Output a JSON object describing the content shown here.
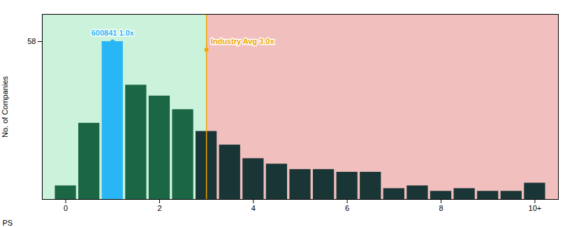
{
  "chart_data": {
    "type": "bar",
    "x": [
      0,
      0.5,
      1,
      1.5,
      2,
      2.5,
      3,
      3.5,
      4,
      4.5,
      5,
      5.5,
      6,
      6.5,
      7,
      7.5,
      8,
      8.5,
      9,
      9.5,
      10
    ],
    "values": [
      5,
      28,
      58,
      42,
      38,
      33,
      25,
      20,
      15,
      13,
      11,
      11,
      10,
      10,
      4,
      5,
      3,
      4,
      3,
      3,
      6
    ],
    "colors": [
      "#1a6645",
      "#1a6645",
      "#29b6f6",
      "#1a6645",
      "#1a6645",
      "#1a6645",
      "#1a3535",
      "#1a3535",
      "#1a3535",
      "#1a3535",
      "#1a3535",
      "#1a3535",
      "#1a3535",
      "#1a3535",
      "#1a3535",
      "#1a3535",
      "#1a3535",
      "#1a3535",
      "#1a3535",
      "#1a3535",
      "#1a3535"
    ],
    "xlabel": "PS",
    "ylabel": "No. of Companies",
    "xlim": [
      -0.5,
      10.5
    ],
    "xticks": [
      0,
      2,
      4,
      6,
      8,
      {
        "value": 10,
        "label": "10+"
      }
    ],
    "ylim": [
      0,
      68
    ],
    "yticks": [
      58
    ],
    "bands": [
      {
        "x": [
          -0.5,
          3.0
        ],
        "color": "#2ecc71"
      },
      {
        "x": [
          3.0,
          10.5
        ],
        "color": "#cc0000"
      }
    ],
    "annotations": [
      {
        "text": "600841 1.0x",
        "x": 1.0,
        "y": 58,
        "color": "#29b6f6"
      },
      {
        "text": "Industry Avg 3.0x",
        "x": 3.0,
        "y": 55,
        "color": "#f0a500",
        "line_style": "solid"
      }
    ]
  }
}
